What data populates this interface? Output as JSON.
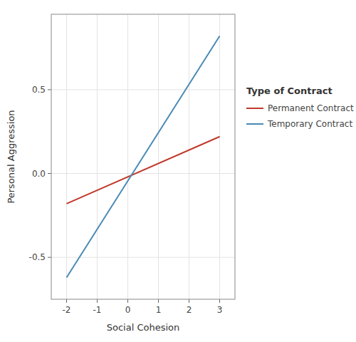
{
  "chart_data": {
    "type": "line",
    "xlabel": "Social Cohesion",
    "ylabel": "Personal Aggression",
    "legend_title": "Type of Contract",
    "legend": "right",
    "grid": true,
    "x": [
      -2,
      3
    ],
    "series": [
      {
        "name": "Permanent Contract",
        "color": "#C0392B",
        "values": [
          -0.18,
          0.22
        ]
      },
      {
        "name": "Temporary Contract",
        "color": "#4A8AB5",
        "values": [
          -0.62,
          0.82
        ]
      }
    ],
    "xlim": [
      -2.5,
      3.5
    ],
    "ylim": [
      -0.75,
      0.95
    ],
    "xticks": [
      -2,
      -1,
      0,
      1,
      2,
      3
    ],
    "yticks": [
      -0.5,
      {
        "value": 0,
        "label": "0.0"
      },
      0.5
    ]
  }
}
